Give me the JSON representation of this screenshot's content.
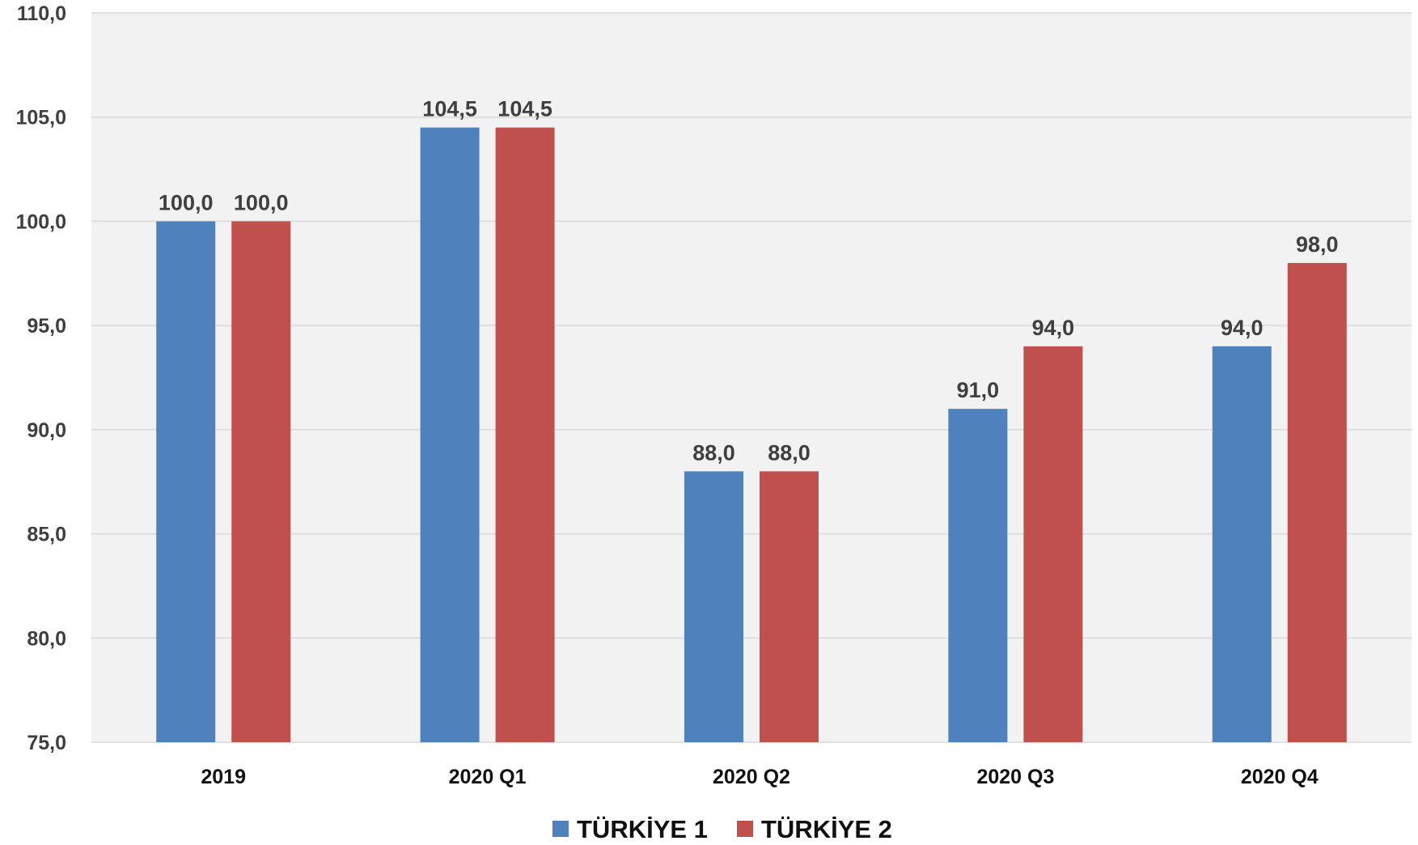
{
  "chart_data": {
    "type": "bar",
    "title": "",
    "xlabel": "",
    "ylabel": "",
    "categories": [
      "2019",
      "2020 Q1",
      "2020 Q2",
      "2020 Q3",
      "2020 Q4"
    ],
    "series": [
      {
        "name": "TÜRKİYE 1",
        "color": "#4f81bd",
        "values": [
          100.0,
          104.5,
          88.0,
          91.0,
          94.0
        ],
        "labels": [
          "100,0",
          "104,5",
          "88,0",
          "91,0",
          "94,0"
        ]
      },
      {
        "name": "TÜRKİYE 2",
        "color": "#c0504d",
        "values": [
          100.0,
          104.5,
          88.0,
          94.0,
          98.0
        ],
        "labels": [
          "100,0",
          "104,5",
          "88,0",
          "94,0",
          "98,0"
        ]
      }
    ],
    "ylim": [
      75,
      110
    ],
    "yticks": [
      75,
      80,
      85,
      90,
      95,
      100,
      105,
      110
    ],
    "ytick_labels": [
      "75,0",
      "80,0",
      "85,0",
      "90,0",
      "95,0",
      "100,0",
      "105,0",
      "110,0"
    ],
    "grid": true,
    "plot_background": "#f2f2f2",
    "gridline_color": "#d9d9d9",
    "legend_position": "bottom-center"
  }
}
